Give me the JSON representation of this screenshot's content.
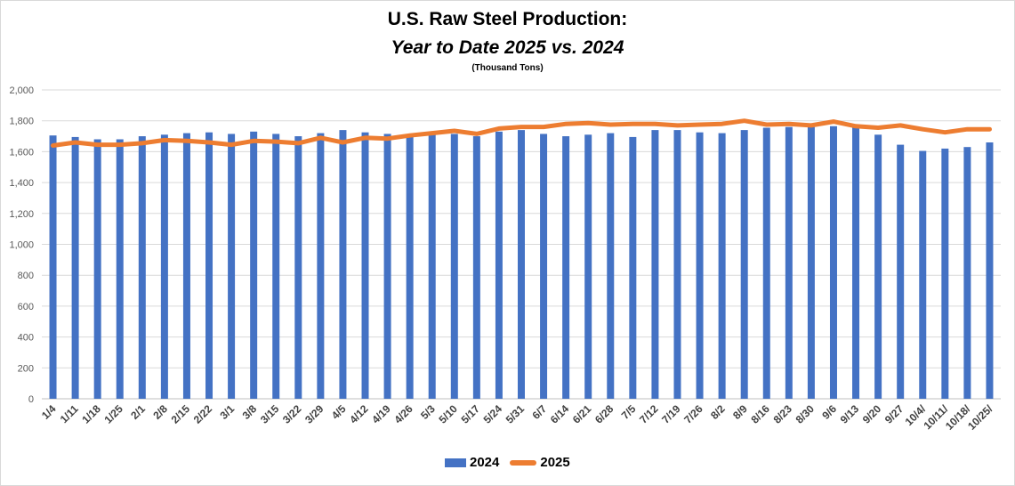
{
  "chart_data": {
    "type": "bar",
    "title": "U.S. Raw Steel Production:",
    "subtitle": "Year to Date 2025 vs. 2024",
    "unit_note": "(Thousand Tons)",
    "xlabel": "",
    "ylabel": "",
    "ylim": [
      0,
      2000
    ],
    "yticks": [
      0,
      200,
      400,
      600,
      800,
      1000,
      1200,
      1400,
      1600,
      1800,
      2000
    ],
    "ytick_labels": [
      "0",
      "200",
      "400",
      "600",
      "800",
      "1,000",
      "1,200",
      "1,400",
      "1,600",
      "1,800",
      "2,000"
    ],
    "grid": true,
    "legend_position": "bottom",
    "categories": [
      "1/4",
      "1/11",
      "1/18",
      "1/25",
      "2/1",
      "2/8",
      "2/15",
      "2/22",
      "3/1",
      "3/8",
      "3/15",
      "3/22",
      "3/29",
      "4/5",
      "4/12",
      "4/19",
      "4/26",
      "5/3",
      "5/10",
      "5/17",
      "5/24",
      "5/31",
      "6/7",
      "6/14",
      "6/21",
      "6/28",
      "7/5",
      "7/12",
      "7/19",
      "7/26",
      "8/2",
      "8/9",
      "8/16",
      "8/23",
      "8/30",
      "9/6",
      "9/13",
      "9/20",
      "9/27",
      "10/4/",
      "10/11/",
      "10/18/",
      "10/25/"
    ],
    "series": [
      {
        "name": "2024",
        "type": "bar",
        "color": "#4472c4",
        "values": [
          1705,
          1695,
          1680,
          1680,
          1700,
          1710,
          1720,
          1725,
          1715,
          1730,
          1715,
          1700,
          1720,
          1740,
          1725,
          1715,
          1700,
          1710,
          1715,
          1700,
          1730,
          1740,
          1715,
          1700,
          1710,
          1720,
          1695,
          1740,
          1740,
          1725,
          1720,
          1740,
          1755,
          1760,
          1760,
          1765,
          1755,
          1710,
          1645,
          1605,
          1620,
          1630,
          1660
        ]
      },
      {
        "name": "2025",
        "type": "line",
        "color": "#ed7d31",
        "values": [
          1640,
          1660,
          1645,
          1645,
          1655,
          1675,
          1670,
          1660,
          1645,
          1670,
          1665,
          1655,
          1690,
          1660,
          1690,
          1685,
          1705,
          1720,
          1735,
          1715,
          1750,
          1760,
          1760,
          1780,
          1785,
          1775,
          1780,
          1780,
          1770,
          1775,
          1780,
          1800,
          1775,
          1780,
          1770,
          1795,
          1765,
          1755,
          1770,
          1745,
          1725,
          1745,
          1745
        ]
      }
    ]
  }
}
